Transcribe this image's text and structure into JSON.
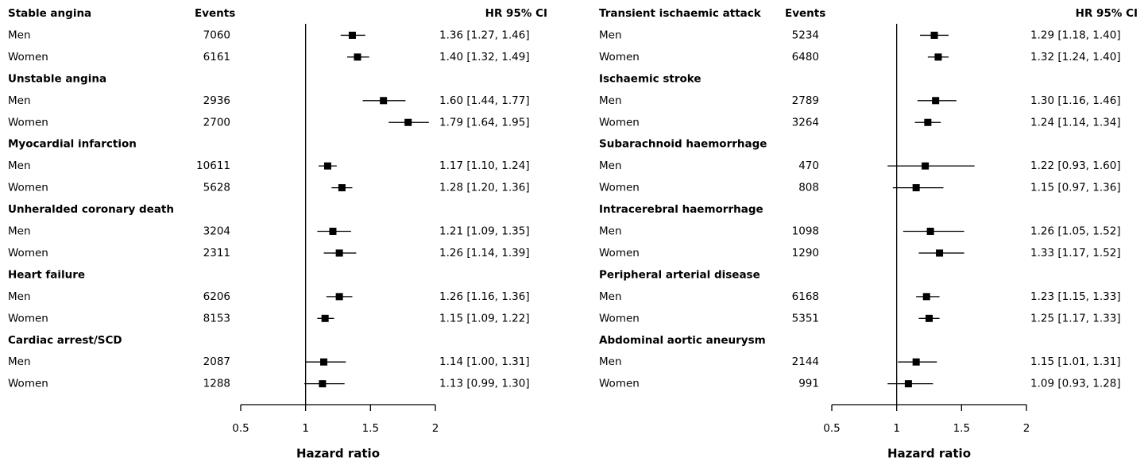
{
  "chart_data": [
    {
      "type": "forest",
      "events_header": "Events",
      "ci_header": "HR 95% CI",
      "xlabel": "Hazard ratio",
      "xlim": [
        0.5,
        2
      ],
      "xticks": [
        0.5,
        1,
        1.5,
        2
      ],
      "reference_line": 1,
      "color": "#000000",
      "groups": [
        {
          "name": "Stable angina",
          "rows": [
            {
              "label": "Men",
              "events": 7060,
              "hr": 1.36,
              "lo": 1.27,
              "hi": 1.46,
              "ci_label": "1.36 [1.27, 1.46]"
            },
            {
              "label": "Women",
              "events": 6161,
              "hr": 1.4,
              "lo": 1.32,
              "hi": 1.49,
              "ci_label": "1.40 [1.32, 1.49]"
            }
          ]
        },
        {
          "name": "Unstable angina",
          "rows": [
            {
              "label": "Men",
              "events": 2936,
              "hr": 1.6,
              "lo": 1.44,
              "hi": 1.77,
              "ci_label": "1.60 [1.44, 1.77]"
            },
            {
              "label": "Women",
              "events": 2700,
              "hr": 1.79,
              "lo": 1.64,
              "hi": 1.95,
              "ci_label": "1.79 [1.64, 1.95]"
            }
          ]
        },
        {
          "name": "Myocardial infarction",
          "rows": [
            {
              "label": "Men",
              "events": 10611,
              "hr": 1.17,
              "lo": 1.1,
              "hi": 1.24,
              "ci_label": "1.17 [1.10, 1.24]"
            },
            {
              "label": "Women",
              "events": 5628,
              "hr": 1.28,
              "lo": 1.2,
              "hi": 1.36,
              "ci_label": "1.28 [1.20, 1.36]"
            }
          ]
        },
        {
          "name": "Unheralded coronary death",
          "rows": [
            {
              "label": "Men",
              "events": 3204,
              "hr": 1.21,
              "lo": 1.09,
              "hi": 1.35,
              "ci_label": "1.21 [1.09, 1.35]"
            },
            {
              "label": "Women",
              "events": 2311,
              "hr": 1.26,
              "lo": 1.14,
              "hi": 1.39,
              "ci_label": "1.26 [1.14, 1.39]"
            }
          ]
        },
        {
          "name": "Heart failure",
          "rows": [
            {
              "label": "Men",
              "events": 6206,
              "hr": 1.26,
              "lo": 1.16,
              "hi": 1.36,
              "ci_label": "1.26 [1.16, 1.36]"
            },
            {
              "label": "Women",
              "events": 8153,
              "hr": 1.15,
              "lo": 1.09,
              "hi": 1.22,
              "ci_label": "1.15 [1.09, 1.22]"
            }
          ]
        },
        {
          "name": "Cardiac arrest/SCD",
          "rows": [
            {
              "label": "Men",
              "events": 2087,
              "hr": 1.14,
              "lo": 1.0,
              "hi": 1.31,
              "ci_label": "1.14 [1.00, 1.31]"
            },
            {
              "label": "Women",
              "events": 1288,
              "hr": 1.13,
              "lo": 0.99,
              "hi": 1.3,
              "ci_label": "1.13 [0.99, 1.30]"
            }
          ]
        }
      ]
    },
    {
      "type": "forest",
      "events_header": "Events",
      "ci_header": "HR 95% CI",
      "xlabel": "Hazard ratio",
      "xlim": [
        0.5,
        2
      ],
      "xticks": [
        0.5,
        1,
        1.5,
        2
      ],
      "reference_line": 1,
      "color": "#000000",
      "groups": [
        {
          "name": "Transient ischaemic attack",
          "rows": [
            {
              "label": "Men",
              "events": 5234,
              "hr": 1.29,
              "lo": 1.18,
              "hi": 1.4,
              "ci_label": "1.29 [1.18, 1.40]"
            },
            {
              "label": "Women",
              "events": 6480,
              "hr": 1.32,
              "lo": 1.24,
              "hi": 1.4,
              "ci_label": "1.32 [1.24, 1.40]"
            }
          ]
        },
        {
          "name": "Ischaemic stroke",
          "rows": [
            {
              "label": "Men",
              "events": 2789,
              "hr": 1.3,
              "lo": 1.16,
              "hi": 1.46,
              "ci_label": "1.30 [1.16, 1.46]"
            },
            {
              "label": "Women",
              "events": 3264,
              "hr": 1.24,
              "lo": 1.14,
              "hi": 1.34,
              "ci_label": "1.24 [1.14, 1.34]"
            }
          ]
        },
        {
          "name": "Subarachnoid haemorrhage",
          "rows": [
            {
              "label": "Men",
              "events": 470,
              "hr": 1.22,
              "lo": 0.93,
              "hi": 1.6,
              "ci_label": "1.22 [0.93, 1.60]"
            },
            {
              "label": "Women",
              "events": 808,
              "hr": 1.15,
              "lo": 0.97,
              "hi": 1.36,
              "ci_label": "1.15 [0.97, 1.36]"
            }
          ]
        },
        {
          "name": "Intracerebral haemorrhage",
          "rows": [
            {
              "label": "Men",
              "events": 1098,
              "hr": 1.26,
              "lo": 1.05,
              "hi": 1.52,
              "ci_label": "1.26 [1.05, 1.52]"
            },
            {
              "label": "Women",
              "events": 1290,
              "hr": 1.33,
              "lo": 1.17,
              "hi": 1.52,
              "ci_label": "1.33 [1.17, 1.52]"
            }
          ]
        },
        {
          "name": "Peripheral arterial disease",
          "rows": [
            {
              "label": "Men",
              "events": 6168,
              "hr": 1.23,
              "lo": 1.15,
              "hi": 1.33,
              "ci_label": "1.23 [1.15, 1.33]"
            },
            {
              "label": "Women",
              "events": 5351,
              "hr": 1.25,
              "lo": 1.17,
              "hi": 1.33,
              "ci_label": "1.25 [1.17, 1.33]"
            }
          ]
        },
        {
          "name": "Abdominal aortic aneurysm",
          "rows": [
            {
              "label": "Men",
              "events": 2144,
              "hr": 1.15,
              "lo": 1.01,
              "hi": 1.31,
              "ci_label": "1.15 [1.01, 1.31]"
            },
            {
              "label": "Women",
              "events": 991,
              "hr": 1.09,
              "lo": 0.93,
              "hi": 1.28,
              "ci_label": "1.09 [0.93, 1.28]"
            }
          ]
        }
      ]
    }
  ]
}
